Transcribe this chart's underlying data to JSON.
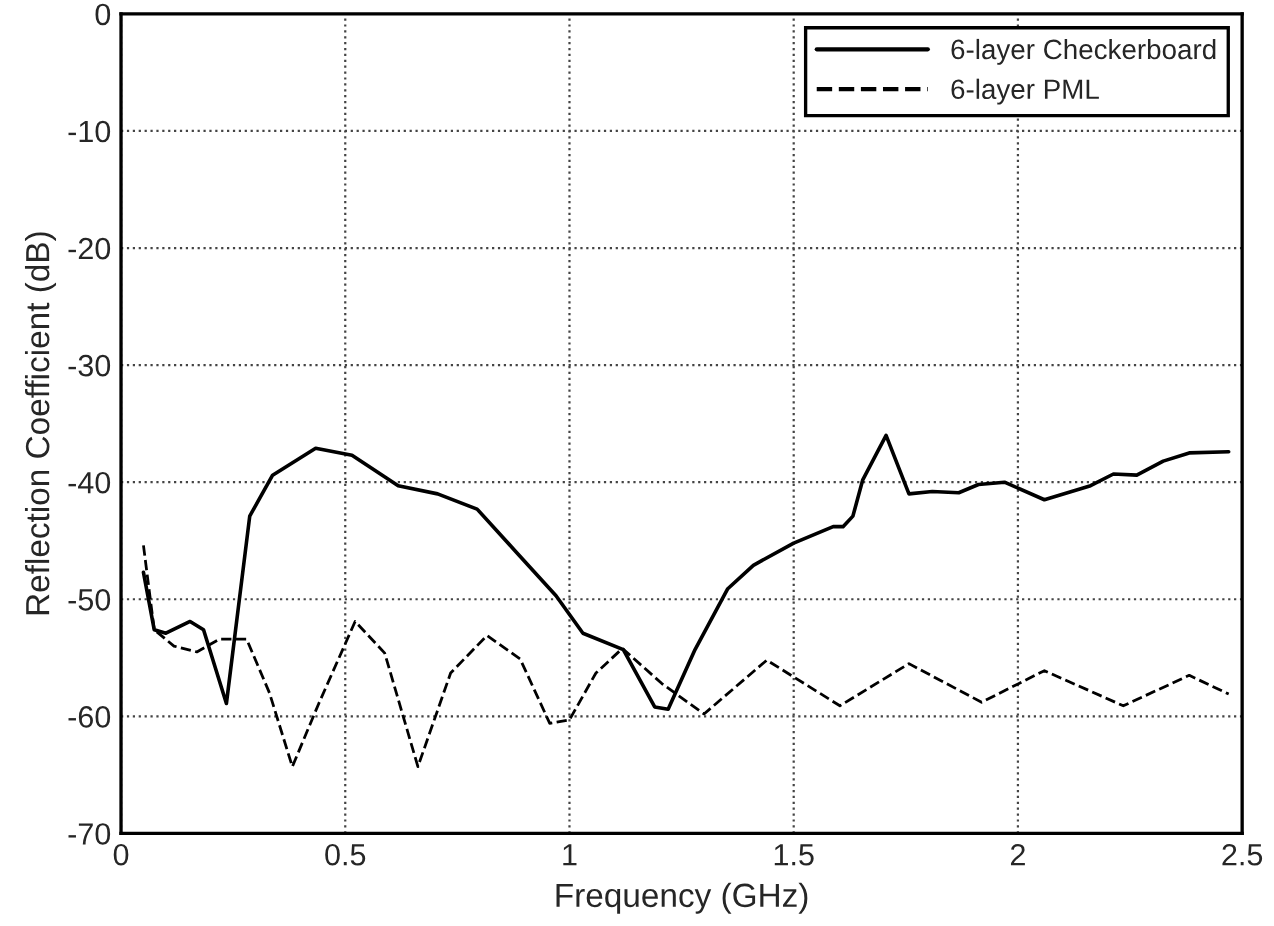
{
  "chart_data": {
    "type": "line",
    "xlabel": "Frequency (GHz)",
    "ylabel": "Reflection Coefficient (dB)",
    "xlim": [
      0,
      2.5
    ],
    "ylim": [
      -70,
      0
    ],
    "xticks": [
      0,
      0.5,
      1,
      1.5,
      2,
      2.5
    ],
    "yticks": [
      -70,
      -60,
      -50,
      -40,
      -30,
      -20,
      -10,
      0
    ],
    "grid": true,
    "legend": "top right",
    "marker": "none",
    "series": [
      {
        "name": "6-layer Checkerboard",
        "color": "#000000",
        "line_style": "solid",
        "x": [
          0.05,
          0.074,
          0.1,
          0.154,
          0.184,
          0.235,
          0.287,
          0.338,
          0.434,
          0.515,
          0.618,
          0.706,
          0.794,
          0.882,
          0.97,
          1.03,
          1.12,
          1.19,
          1.22,
          1.28,
          1.353,
          1.41,
          1.5,
          1.588,
          1.61,
          1.632,
          1.654,
          1.706,
          1.757,
          1.809,
          1.868,
          1.912,
          1.97,
          2.059,
          2.162,
          2.213,
          2.265,
          2.324,
          2.382,
          2.47
        ],
        "values": [
          -47.7,
          -52.6,
          -52.9,
          -51.9,
          -52.6,
          -58.9,
          -42.9,
          -39.4,
          -37.1,
          -37.7,
          -40.3,
          -41.0,
          -42.3,
          -46.0,
          -49.7,
          -52.9,
          -54.3,
          -59.2,
          -59.4,
          -54.3,
          -49.1,
          -47.1,
          -45.2,
          -43.8,
          -43.8,
          -42.9,
          -39.8,
          -36.0,
          -41.0,
          -40.8,
          -40.9,
          -40.2,
          -40.0,
          -41.5,
          -40.3,
          -39.3,
          -39.4,
          -38.2,
          -37.5,
          -37.4
        ]
      },
      {
        "name": "6-layer PML",
        "color": "#000000",
        "line_style": "dashed",
        "x": [
          0.05,
          0.074,
          0.118,
          0.169,
          0.22,
          0.28,
          0.331,
          0.382,
          0.441,
          0.522,
          0.588,
          0.662,
          0.735,
          0.816,
          0.89,
          0.956,
          1.0,
          1.059,
          1.118,
          1.206,
          1.3,
          1.44,
          1.603,
          1.757,
          1.919,
          2.059,
          2.235,
          2.382,
          2.47
        ],
        "values": [
          -45.4,
          -52.6,
          -54.0,
          -54.5,
          -53.4,
          -53.4,
          -58.0,
          -64.3,
          -58.9,
          -51.9,
          -54.6,
          -64.3,
          -56.3,
          -53.1,
          -55.1,
          -60.6,
          -60.3,
          -56.3,
          -54.2,
          -57.2,
          -59.8,
          -55.2,
          -59.1,
          -55.5,
          -58.8,
          -56.1,
          -59.1,
          -56.5,
          -58.1
        ]
      }
    ]
  }
}
